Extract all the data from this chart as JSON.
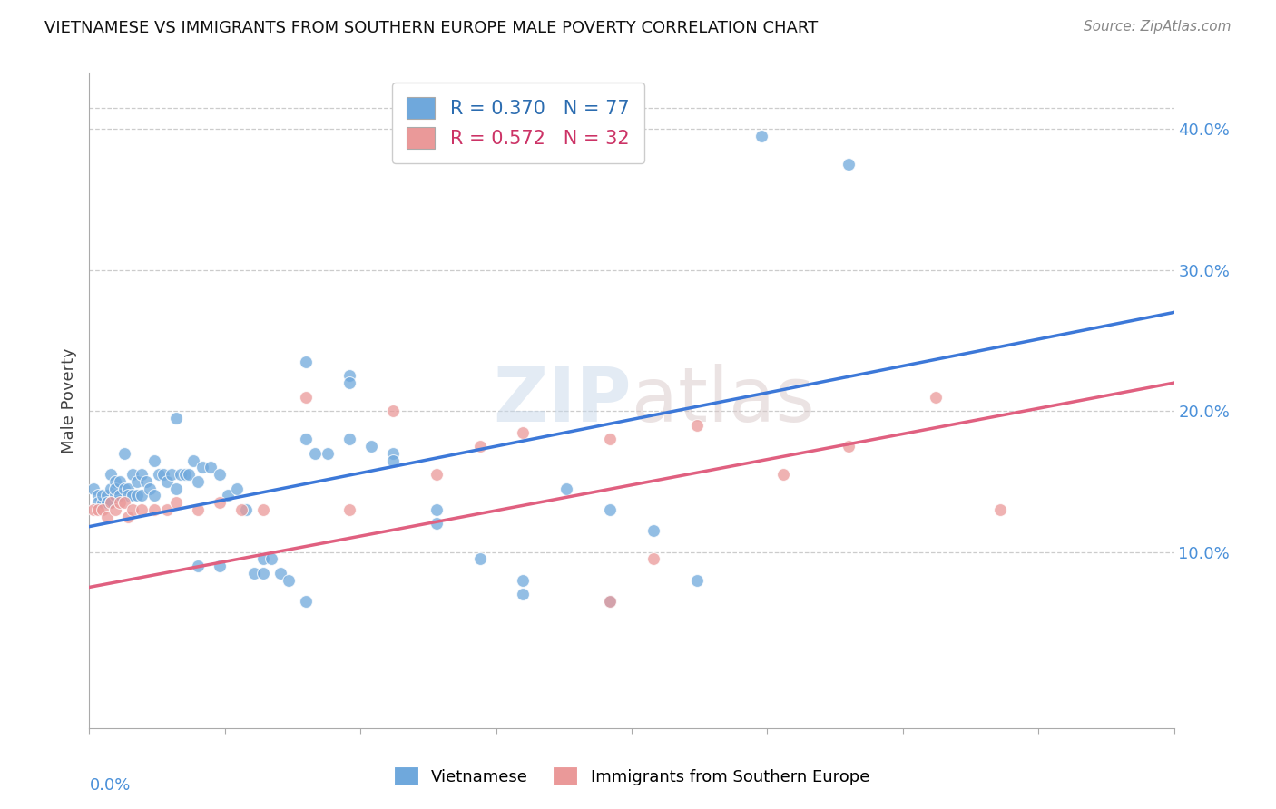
{
  "title": "VIETNAMESE VS IMMIGRANTS FROM SOUTHERN EUROPE MALE POVERTY CORRELATION CHART",
  "source": "Source: ZipAtlas.com",
  "ylabel": "Male Poverty",
  "right_yticks": [
    0.1,
    0.2,
    0.3,
    0.4
  ],
  "right_yticklabels": [
    "10.0%",
    "20.0%",
    "30.0%",
    "40.0%"
  ],
  "xmin": 0.0,
  "xmax": 0.25,
  "ymin": -0.025,
  "ymax": 0.44,
  "legend_entry1": "R = 0.370   N = 77",
  "legend_entry2": "R = 0.572   N = 32",
  "legend_label1": "Vietnamese",
  "legend_label2": "Immigrants from Southern Europe",
  "blue_color": "#6fa8dc",
  "pink_color": "#ea9999",
  "blue_line_color": "#3c78d8",
  "pink_line_color": "#e06080",
  "blue_line_y0": 0.118,
  "blue_line_y1": 0.27,
  "pink_line_y0": 0.075,
  "pink_line_y1": 0.22,
  "blue_x": [
    0.001,
    0.002,
    0.002,
    0.003,
    0.003,
    0.004,
    0.004,
    0.005,
    0.005,
    0.005,
    0.006,
    0.006,
    0.006,
    0.007,
    0.007,
    0.008,
    0.008,
    0.009,
    0.009,
    0.01,
    0.01,
    0.011,
    0.011,
    0.012,
    0.012,
    0.013,
    0.014,
    0.015,
    0.015,
    0.016,
    0.017,
    0.018,
    0.019,
    0.02,
    0.021,
    0.022,
    0.023,
    0.024,
    0.025,
    0.026,
    0.028,
    0.03,
    0.032,
    0.034,
    0.036,
    0.038,
    0.04,
    0.042,
    0.044,
    0.046,
    0.05,
    0.055,
    0.06,
    0.065,
    0.07,
    0.08,
    0.09,
    0.1,
    0.11,
    0.12,
    0.13,
    0.14,
    0.05,
    0.06,
    0.07,
    0.08,
    0.1,
    0.12,
    0.05,
    0.04,
    0.03,
    0.025,
    0.02,
    0.052,
    0.06,
    0.155,
    0.175
  ],
  "blue_y": [
    0.145,
    0.14,
    0.135,
    0.135,
    0.14,
    0.14,
    0.135,
    0.155,
    0.145,
    0.135,
    0.15,
    0.14,
    0.145,
    0.15,
    0.14,
    0.17,
    0.145,
    0.145,
    0.14,
    0.155,
    0.14,
    0.15,
    0.14,
    0.155,
    0.14,
    0.15,
    0.145,
    0.165,
    0.14,
    0.155,
    0.155,
    0.15,
    0.155,
    0.145,
    0.155,
    0.155,
    0.155,
    0.165,
    0.15,
    0.16,
    0.16,
    0.155,
    0.14,
    0.145,
    0.13,
    0.085,
    0.095,
    0.095,
    0.085,
    0.08,
    0.235,
    0.17,
    0.225,
    0.175,
    0.17,
    0.13,
    0.095,
    0.08,
    0.145,
    0.13,
    0.115,
    0.08,
    0.18,
    0.18,
    0.165,
    0.12,
    0.07,
    0.065,
    0.065,
    0.085,
    0.09,
    0.09,
    0.195,
    0.17,
    0.22,
    0.395,
    0.375
  ],
  "pink_x": [
    0.001,
    0.002,
    0.003,
    0.004,
    0.005,
    0.006,
    0.007,
    0.008,
    0.009,
    0.01,
    0.012,
    0.015,
    0.018,
    0.02,
    0.025,
    0.03,
    0.035,
    0.04,
    0.05,
    0.06,
    0.07,
    0.08,
    0.09,
    0.1,
    0.12,
    0.14,
    0.16,
    0.175,
    0.195,
    0.13,
    0.21,
    0.12
  ],
  "pink_y": [
    0.13,
    0.13,
    0.13,
    0.125,
    0.135,
    0.13,
    0.135,
    0.135,
    0.125,
    0.13,
    0.13,
    0.13,
    0.13,
    0.135,
    0.13,
    0.135,
    0.13,
    0.13,
    0.21,
    0.13,
    0.2,
    0.155,
    0.175,
    0.185,
    0.18,
    0.19,
    0.155,
    0.175,
    0.21,
    0.095,
    0.13,
    0.065
  ]
}
